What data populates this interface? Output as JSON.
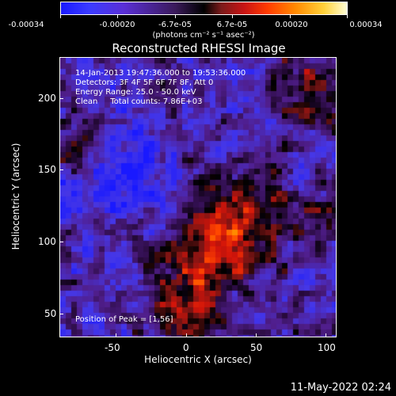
{
  "colorbar": {
    "tick_labels": [
      "-0.00034",
      "-0.00020",
      "-6.7e-05",
      "6.7e-05",
      "0.00020",
      "0.00034"
    ],
    "units": "(photons cm⁻² s⁻¹ asec⁻²)",
    "colormap": [
      "#1a1aff",
      "#5a2fd6",
      "#3a1a5a",
      "#000000",
      "#c81414",
      "#ff3a00",
      "#ff8a00",
      "#ffd23a",
      "#ffffd8"
    ]
  },
  "title": "Reconstructed RHESSI Image",
  "annotations": {
    "time_range": "14-Jan-2013 19:47:36.000 to 19:53:36.000",
    "detectors": "Detectors: 3F 4F 5F 6F 7F 8F, Att 0",
    "energy": "Energy Range: 25.0 - 50.0 keV",
    "clean_counts": "Clean     Total counts: 7.86E+03",
    "peak": "Position of Peak = [1,56]"
  },
  "axes": {
    "x_label": "Heliocentric X (arcsec)",
    "y_label": "Heliocentric Y (arcsec)",
    "x_ticks": [
      "-50",
      "0",
      "50",
      "100"
    ],
    "y_ticks": [
      "200",
      "150",
      "100",
      "50"
    ]
  },
  "footer": {
    "date": "11-May-2022 02:24"
  }
}
